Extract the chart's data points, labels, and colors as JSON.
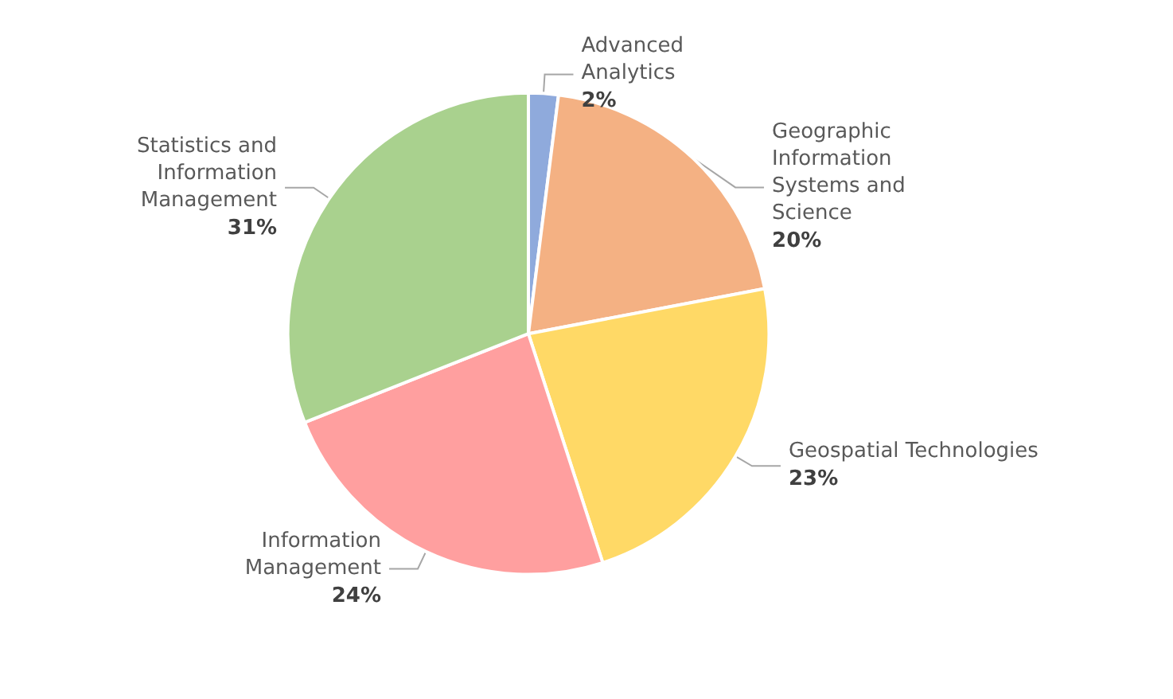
{
  "chart_data": {
    "type": "pie",
    "categories": [
      "Advanced Analytics",
      "Geographic Information Systems and Science",
      "Geospatial Technologies",
      "Information Management",
      "Statistics and Information Management"
    ],
    "values": [
      2,
      20,
      23,
      24,
      31
    ],
    "value_labels": [
      "2%",
      "20%",
      "23%",
      "24%",
      "31%"
    ],
    "colors": [
      "#8faadc",
      "#f4b183",
      "#ffd966",
      "#ff9f9f",
      "#a9d18e"
    ],
    "legend": false
  }
}
